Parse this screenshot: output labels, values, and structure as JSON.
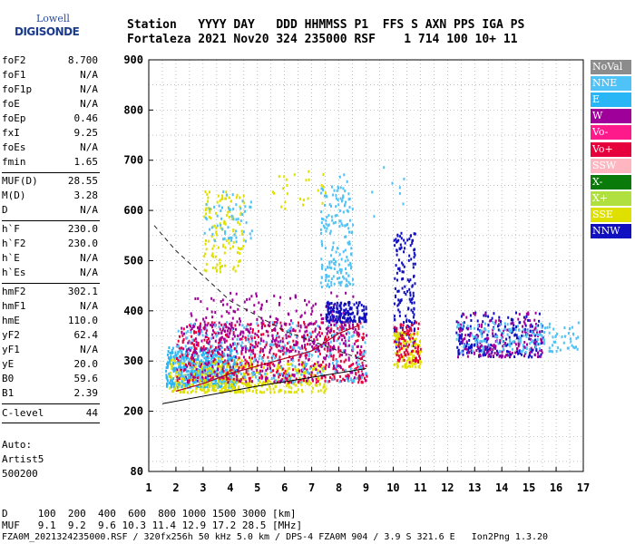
{
  "logo": {
    "top": "Lowell",
    "bottom": "DIGISONDE"
  },
  "header": {
    "line1": "Station   YYYY DAY   DDD HHMMSS P1  FFS S AXN PPS IGA PS",
    "line2": "Fortaleza 2021 Nov20 324 235000 RSF    1 714 100 10+ 11"
  },
  "params_group1": [
    {
      "label": "foF2",
      "value": "8.700"
    },
    {
      "label": "foF1",
      "value": "N/A"
    },
    {
      "label": "foF1p",
      "value": "N/A"
    },
    {
      "label": "foE",
      "value": "N/A"
    },
    {
      "label": "foEp",
      "value": "0.46"
    },
    {
      "label": "fxI",
      "value": "9.25"
    },
    {
      "label": "foEs",
      "value": "N/A"
    },
    {
      "label": "fmin",
      "value": "1.65"
    }
  ],
  "params_group2": [
    {
      "label": "MUF(D)",
      "value": "28.55"
    },
    {
      "label": "M(D)",
      "value": "3.28"
    },
    {
      "label": "D",
      "value": "N/A"
    }
  ],
  "params_group3": [
    {
      "label": "h`F",
      "value": "230.0"
    },
    {
      "label": "h`F2",
      "value": "230.0"
    },
    {
      "label": "h`E",
      "value": "N/A"
    },
    {
      "label": "h`Es",
      "value": "N/A"
    }
  ],
  "params_group4": [
    {
      "label": "hmF2",
      "value": "302.1"
    },
    {
      "label": "hmF1",
      "value": "N/A"
    },
    {
      "label": "hmE",
      "value": "110.0"
    },
    {
      "label": "yF2",
      "value": "62.4"
    },
    {
      "label": "yF1",
      "value": "N/A"
    },
    {
      "label": "yE",
      "value": "20.0"
    },
    {
      "label": "B0",
      "value": "59.6"
    },
    {
      "label": "B1",
      "value": "2.39"
    }
  ],
  "clevel": {
    "label": "C-level",
    "value": "44"
  },
  "auto": {
    "line1": "Auto:",
    "line2": "Artist5",
    "line3": "500200"
  },
  "legend": [
    {
      "name": "NoVal",
      "color": "#8c8c8c"
    },
    {
      "name": "NNE",
      "color": "#4fc3f7"
    },
    {
      "name": "E",
      "color": "#29b6f6"
    },
    {
      "name": "W",
      "color": "#a0009a"
    },
    {
      "name": "Vo-",
      "color": "#ff1a8c"
    },
    {
      "name": "Vo+",
      "color": "#e6003c"
    },
    {
      "name": "SSW",
      "color": "#ffb6c1"
    },
    {
      "name": "X-",
      "color": "#0a7a0a"
    },
    {
      "name": "X+",
      "color": "#b0e040"
    },
    {
      "name": "SSE",
      "color": "#e0e000"
    },
    {
      "name": "NNW",
      "color": "#1010c0"
    }
  ],
  "bottom": {
    "line1": "D     100  200  400  600  800 1000 1500 3000 [km]",
    "line2": "MUF   9.1  9.2  9.6 10.3 11.4 12.9 17.2 28.5 [MHz]",
    "line3": "FZA0M_2021324235000.RSF / 320fx256h 50 kHz 5.0 km / DPS-4 FZA0M 904 / 3.9 S 321.6 E   Ion2Png 1.3.20"
  },
  "chart_data": {
    "type": "scatter",
    "title": "",
    "xlabel": "",
    "ylabel": "",
    "xlim": [
      1,
      17
    ],
    "ylim": [
      80,
      900
    ],
    "xticks": [
      "1",
      "2",
      "3",
      "4",
      "5",
      "6",
      "7",
      "8",
      "9",
      "10",
      "11",
      "12",
      "13",
      "14",
      "15",
      "16",
      "17"
    ],
    "yticks": [
      "80",
      "200",
      "300",
      "400",
      "500",
      "600",
      "700",
      "800",
      "900"
    ],
    "grid": true,
    "echo_clusters": [
      {
        "f": [
          1.6,
          4.2
        ],
        "h": [
          250,
          330
        ],
        "color": "#29b6f6",
        "n": 500
      },
      {
        "f": [
          1.7,
          4.8
        ],
        "h": [
          240,
          310
        ],
        "color": "#e0e000",
        "n": 180
      },
      {
        "f": [
          2.5,
          7.5
        ],
        "h": [
          240,
          300
        ],
        "color": "#e0e000",
        "n": 300
      },
      {
        "f": [
          2.0,
          9.0
        ],
        "h": [
          260,
          380
        ],
        "color": "#e6003c",
        "n": 500
      },
      {
        "f": [
          2.0,
          9.0
        ],
        "h": [
          260,
          380
        ],
        "color": "#a0009a",
        "n": 300
      },
      {
        "f": [
          2.0,
          9.0
        ],
        "h": [
          260,
          380
        ],
        "color": "#4fc3f7",
        "n": 300
      },
      {
        "f": [
          2.5,
          8.5
        ],
        "h": [
          320,
          440
        ],
        "color": "#a0009a",
        "n": 250
      },
      {
        "f": [
          3.0,
          4.5
        ],
        "h": [
          480,
          640
        ],
        "color": "#e0e000",
        "n": 120
      },
      {
        "f": [
          3.0,
          4.8
        ],
        "h": [
          540,
          640
        ],
        "color": "#4fc3f7",
        "n": 60
      },
      {
        "f": [
          7.3,
          8.5
        ],
        "h": [
          450,
          650
        ],
        "color": "#4fc3f7",
        "n": 180
      },
      {
        "f": [
          7.5,
          9.0
        ],
        "h": [
          380,
          420
        ],
        "color": "#1010c0",
        "n": 160
      },
      {
        "f": [
          10.0,
          10.8
        ],
        "h": [
          330,
          560
        ],
        "color": "#1010c0",
        "n": 160
      },
      {
        "f": [
          10.0,
          11.0
        ],
        "h": [
          290,
          360
        ],
        "color": "#e0e000",
        "n": 120
      },
      {
        "f": [
          10.0,
          11.0
        ],
        "h": [
          300,
          380
        ],
        "color": "#e6003c",
        "n": 80
      },
      {
        "f": [
          12.3,
          15.5
        ],
        "h": [
          310,
          400
        ],
        "color": "#1010c0",
        "n": 220
      },
      {
        "f": [
          12.3,
          15.5
        ],
        "h": [
          310,
          400
        ],
        "color": "#a0009a",
        "n": 160
      },
      {
        "f": [
          12.3,
          16.8
        ],
        "h": [
          320,
          380
        ],
        "color": "#4fc3f7",
        "n": 160
      },
      {
        "f": [
          5.5,
          7.5
        ],
        "h": [
          600,
          700
        ],
        "color": "#e0e000",
        "n": 25
      },
      {
        "f": [
          8.0,
          11.0
        ],
        "h": [
          590,
          690
        ],
        "color": "#4fc3f7",
        "n": 12
      }
    ],
    "dashed_curve": [
      [
        1.2,
        570
      ],
      [
        2,
        520
      ],
      [
        3,
        470
      ],
      [
        4,
        420
      ],
      [
        5,
        390
      ],
      [
        6,
        360
      ],
      [
        7,
        340
      ],
      [
        8,
        320
      ],
      [
        9,
        300
      ]
    ],
    "lower_line": [
      [
        1.5,
        215
      ],
      [
        5,
        250
      ],
      [
        9,
        285
      ]
    ],
    "red_trace": [
      [
        2,
        240
      ],
      [
        3,
        255
      ],
      [
        4,
        275
      ],
      [
        5,
        290
      ],
      [
        6,
        305
      ],
      [
        7,
        320
      ],
      [
        8,
        355
      ],
      [
        8.7,
        370
      ]
    ]
  }
}
